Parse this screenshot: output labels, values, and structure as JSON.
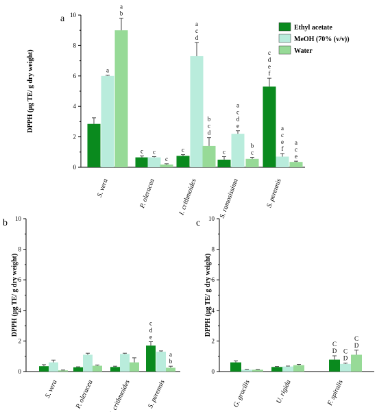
{
  "chart_data": [
    {
      "type": "bar",
      "panel_label": "a",
      "ylabel": "DPPH (µg TE/ g dry weight)",
      "ylim": [
        0,
        10
      ],
      "yticks": [
        0,
        2,
        4,
        6,
        8,
        10
      ],
      "categories": [
        "S. vera",
        "P. oleracea",
        "I. crithmoides",
        "S. ramosissima",
        "S. perennis"
      ],
      "series": [
        {
          "name": "Ethyl acetate",
          "color": "#0a8a1e",
          "values": [
            2.85,
            0.65,
            0.75,
            0.5,
            5.3
          ],
          "errors": [
            0.4,
            0.1,
            0.08,
            0.2,
            0.55
          ],
          "letters": [
            "",
            "c",
            "c",
            "c",
            "c d e f"
          ]
        },
        {
          "name": "MeOH (70% (v/v))",
          "color": "#b9ecdc",
          "values": [
            6.0,
            0.65,
            7.3,
            2.2,
            0.7
          ],
          "errors": [
            0.05,
            0.05,
            0.9,
            0.2,
            0.2
          ],
          "letters": [
            "a",
            "c",
            "a c d",
            "a c d e",
            "a c e f"
          ]
        },
        {
          "name": "Water",
          "color": "#97da97",
          "values": [
            9.0,
            0.18,
            1.4,
            0.55,
            0.35
          ],
          "errors": [
            0.8,
            0.05,
            0.55,
            0.1,
            0.05
          ],
          "letters": [
            "a b",
            "c",
            "b c d",
            "b c",
            "a c e"
          ]
        }
      ],
      "legend_position": "top-right"
    },
    {
      "type": "bar",
      "panel_label": "b",
      "ylabel": "DPPH (µg TE/ g dry weight)",
      "ylim": [
        0,
        10
      ],
      "yticks": [
        0,
        2,
        4,
        6,
        8,
        10
      ],
      "categories": [
        "S. vera",
        "P. oleracea",
        "I. crithmoides",
        "S. perennis"
      ],
      "series": [
        {
          "name": "Ethyl acetate",
          "color": "#0a8a1e",
          "values": [
            0.35,
            0.28,
            0.3,
            1.7
          ],
          "errors": [
            0.1,
            0.03,
            0.05,
            0.25
          ],
          "letters": [
            "",
            "",
            "",
            "c d e"
          ]
        },
        {
          "name": "MeOH (70% (v/v))",
          "color": "#b9ecdc",
          "values": [
            0.6,
            1.1,
            1.15,
            1.3
          ],
          "errors": [
            0.15,
            0.1,
            0.05,
            0.05
          ],
          "letters": [
            "",
            "",
            "",
            ""
          ]
        },
        {
          "name": "Water",
          "color": "#97da97",
          "values": [
            0.08,
            0.38,
            0.6,
            0.25
          ],
          "errors": [
            0.02,
            0.05,
            0.3,
            0.1
          ],
          "letters": [
            "",
            "",
            "",
            "a b"
          ]
        }
      ]
    },
    {
      "type": "bar",
      "panel_label": "c",
      "ylabel": "DPPH (µg TE/ g dry weight)",
      "ylim": [
        0,
        10
      ],
      "yticks": [
        0,
        2,
        4,
        6,
        8,
        10
      ],
      "categories": [
        "G. gracilis",
        "U. rigida",
        "F. spiralis"
      ],
      "series": [
        {
          "name": "Ethyl acetate",
          "color": "#0a8a1e",
          "values": [
            0.6,
            0.3,
            0.78
          ],
          "errors": [
            0.1,
            0.03,
            0.25
          ],
          "letters": [
            "",
            "",
            "C D"
          ]
        },
        {
          "name": "MeOH (70% (v/v))",
          "color": "#b9ecdc",
          "values": [
            0.12,
            0.33,
            0.5
          ],
          "errors": [
            0.03,
            0.03,
            0.05
          ],
          "letters": [
            "",
            "",
            "C D"
          ]
        },
        {
          "name": "Water",
          "color": "#97da97",
          "values": [
            0.12,
            0.42,
            1.1
          ],
          "errors": [
            0.02,
            0.05,
            0.3
          ],
          "letters": [
            "",
            "",
            "C D"
          ]
        }
      ]
    }
  ]
}
